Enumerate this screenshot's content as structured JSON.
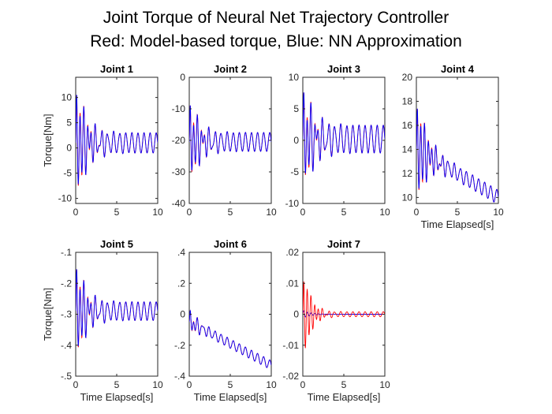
{
  "title_line1": "Joint Torque of Neural Net Trajectory Controller",
  "title_line2": "Red: Model-based torque, Blue: NN Approximation",
  "colors": {
    "model_based": "#ff0000",
    "nn": "#0000ff",
    "axis": "#262626"
  },
  "chart_data": [
    {
      "type": "line",
      "title": "Joint 1",
      "xlabel": "",
      "ylabel": "Torque[Nm]",
      "xlim": [
        0,
        10
      ],
      "ylim": [
        -11,
        14
      ],
      "xticks": [
        0,
        5,
        10
      ],
      "yticks": [
        -10,
        -5,
        0,
        5,
        10
      ],
      "series": [
        {
          "color": "#ff0000"
        },
        {
          "color": "#0000ff"
        }
      ],
      "sim": {
        "base": 1.0,
        "drift": 0,
        "a": 12.0,
        "f": 2.2,
        "decay": 1.3,
        "b": 2.0,
        "f2": 1.35
      }
    },
    {
      "type": "line",
      "title": "Joint 2",
      "xlabel": "",
      "ylabel": "",
      "xlim": [
        0,
        10
      ],
      "ylim": [
        -40,
        0
      ],
      "xticks": [
        0,
        5,
        10
      ],
      "yticks": [
        -40,
        -30,
        -20,
        -10,
        0
      ],
      "series": [
        {
          "color": "#ff0000"
        },
        {
          "color": "#0000ff"
        }
      ],
      "sim": {
        "base": -20.5,
        "drift": 0,
        "a": 14.0,
        "f": 2.2,
        "decay": 1.2,
        "b": 3.0,
        "f2": 1.35
      }
    },
    {
      "type": "line",
      "title": "Joint 3",
      "xlabel": "",
      "ylabel": "",
      "xlim": [
        0,
        10
      ],
      "ylim": [
        -10,
        10
      ],
      "xticks": [
        0,
        5,
        10
      ],
      "yticks": [
        -10,
        -5,
        0,
        5,
        10
      ],
      "series": [
        {
          "color": "#ff0000"
        },
        {
          "color": "#0000ff"
        }
      ],
      "sim": {
        "base": 0.2,
        "drift": 0,
        "a": 8.5,
        "f": 2.2,
        "decay": 1.3,
        "b": 2.2,
        "f2": 1.35
      }
    },
    {
      "type": "line",
      "title": "Joint 4",
      "xlabel": "Time Elapsed[s]",
      "ylabel": "",
      "xlim": [
        0,
        10
      ],
      "ylim": [
        9.5,
        20
      ],
      "xticks": [
        0,
        5,
        10
      ],
      "yticks": [
        10,
        12,
        14,
        16,
        18,
        20
      ],
      "series": [
        {
          "color": "#ff0000"
        },
        {
          "color": "#0000ff"
        }
      ],
      "sim": {
        "base": 14.0,
        "drift": -0.4,
        "a": 4.5,
        "f": 2.2,
        "decay": 1.3,
        "b": 0.6,
        "f2": 1.35
      }
    },
    {
      "type": "line",
      "title": "Joint 5",
      "xlabel": "Time Elapsed[s]",
      "ylabel": "Torque[Nm]",
      "xlim": [
        0,
        10
      ],
      "ylim": [
        -0.5,
        -0.1
      ],
      "xticks": [
        0,
        5,
        10
      ],
      "yticks": [
        -0.5,
        -0.4,
        -0.3,
        -0.2,
        -0.1
      ],
      "series": [
        {
          "color": "#ff0000"
        },
        {
          "color": "#0000ff"
        }
      ],
      "sim": {
        "base": -0.29,
        "drift": 0,
        "a": 0.17,
        "f": 2.2,
        "decay": 1.2,
        "b": 0.03,
        "f2": 1.35
      }
    },
    {
      "type": "line",
      "title": "Joint 6",
      "xlabel": "Time Elapsed[s]",
      "ylabel": "",
      "xlim": [
        0,
        10
      ],
      "ylim": [
        -0.4,
        0.4
      ],
      "xticks": [
        0,
        5,
        10
      ],
      "yticks": [
        -0.4,
        -0.2,
        0,
        0.2,
        0.4
      ],
      "series": [
        {
          "color": "#ff0000"
        },
        {
          "color": "#0000ff"
        }
      ],
      "sim": {
        "base": -0.05,
        "drift": -0.028,
        "a": 0.08,
        "f": 2.2,
        "decay": 1.0,
        "b": 0.03,
        "f2": 1.35
      }
    },
    {
      "type": "line",
      "title": "Joint 7",
      "xlabel": "Time Elapsed[s]",
      "ylabel": "",
      "xlim": [
        0,
        10
      ],
      "ylim": [
        -0.02,
        0.02
      ],
      "xticks": [
        0,
        5,
        10
      ],
      "yticks": [
        -0.02,
        -0.01,
        0,
        0.01,
        0.02
      ],
      "series": [
        {
          "color": "#ff0000"
        },
        {
          "color": "#0000ff"
        }
      ],
      "sim": {
        "base": 0,
        "drift": 0,
        "a": 0.016,
        "f": 2.2,
        "decay": 0.9,
        "b": 0.0008,
        "f2": 1.35,
        "nn_flat": true
      }
    }
  ]
}
